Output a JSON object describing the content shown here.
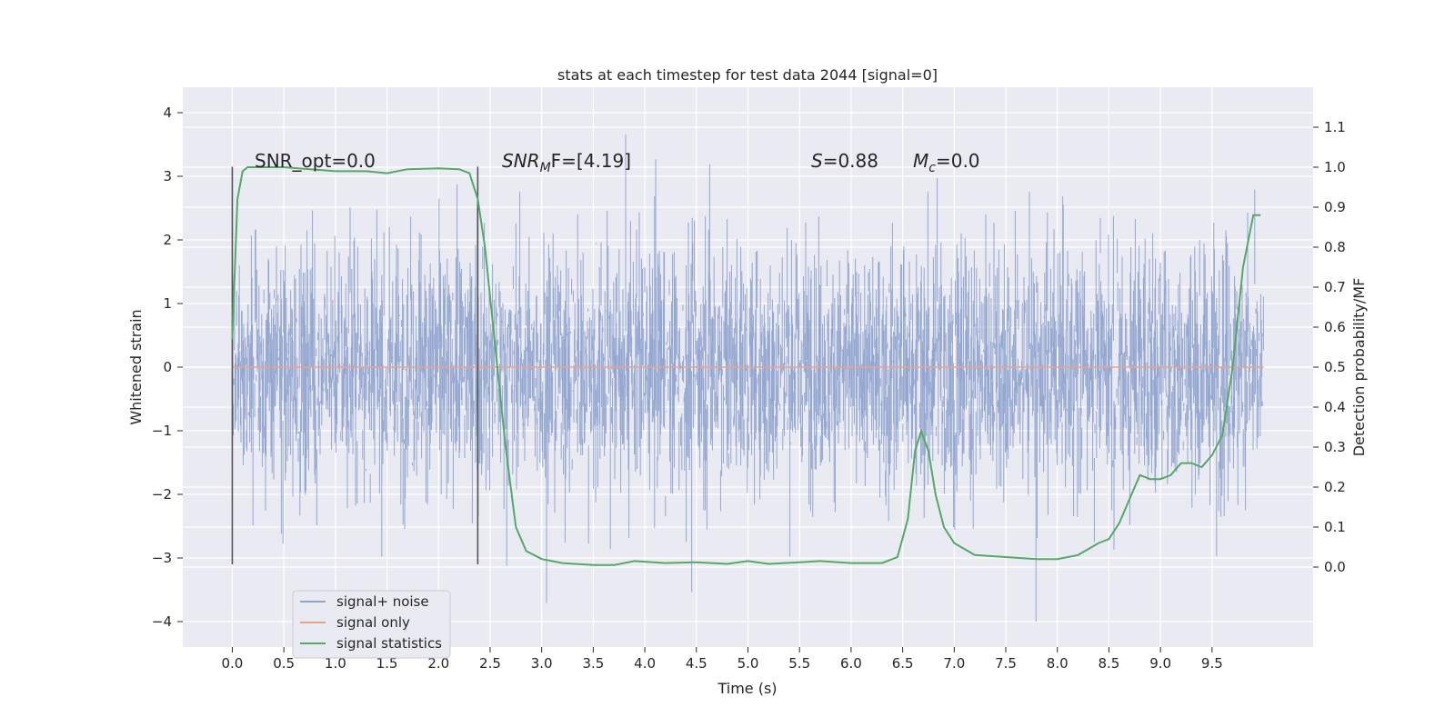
{
  "chart_data": {
    "type": "line",
    "title": "stats at each timestep for test data 2044 [signal=0]",
    "xlabel": "Time (s)",
    "ylabel_left": "Whitened strain",
    "ylabel_right": "Detection probability/MF",
    "xlim": [
      -0.48,
      10.48
    ],
    "ylim_left": [
      -4.4,
      4.4
    ],
    "ylim_right": [
      -0.2,
      1.2
    ],
    "x_ticks": [
      "0.0",
      "0.5",
      "1.0",
      "1.5",
      "2.0",
      "2.5",
      "3.0",
      "3.5",
      "4.0",
      "4.5",
      "5.0",
      "5.5",
      "6.0",
      "6.5",
      "7.0",
      "7.5",
      "8.0",
      "8.5",
      "9.0",
      "9.5"
    ],
    "y_left_ticks": [
      "4",
      "3",
      "2",
      "1",
      "0",
      "−1",
      "−2",
      "−3",
      "−4"
    ],
    "y_right_ticks": [
      "1.1",
      "1.0",
      "0.9",
      "0.8",
      "0.7",
      "0.6",
      "0.5",
      "0.4",
      "0.3",
      "0.2",
      "0.1",
      "0.0"
    ],
    "grid": true,
    "legend_position": "lower-left",
    "annotations": {
      "snr_opt": "SNR_opt=0.0",
      "snr_mf_label": "SNR",
      "snr_mf_sub": "M",
      "snr_mf_rest": "F=[4.19]",
      "s_label": "S",
      "s_value": "=0.88",
      "mc_label": "M",
      "mc_sub": "c",
      "mc_value": "=0.0"
    },
    "vertical_markers_x": [
      0.0,
      2.38
    ],
    "series": [
      {
        "name": "signal+ noise",
        "color": "#8fa3cf",
        "x_range": [
          0.0,
          10.0
        ],
        "approx_envelope": [
          -4.0,
          4.05
        ]
      },
      {
        "name": "signal only",
        "color": "#e8a38c",
        "x": [
          0.0,
          10.0
        ],
        "y": [
          0.0,
          0.0
        ]
      },
      {
        "name": "signal statistics",
        "color": "#55a868",
        "x": [
          0.0,
          0.05,
          0.1,
          0.15,
          0.25,
          0.5,
          1.0,
          1.3,
          1.5,
          1.7,
          2.0,
          2.2,
          2.3,
          2.38,
          2.45,
          2.55,
          2.65,
          2.75,
          2.85,
          3.0,
          3.2,
          3.5,
          3.7,
          3.9,
          4.2,
          4.5,
          4.8,
          5.0,
          5.2,
          5.5,
          5.7,
          6.0,
          6.3,
          6.45,
          6.55,
          6.62,
          6.68,
          6.75,
          6.82,
          6.9,
          7.0,
          7.2,
          7.5,
          7.8,
          8.0,
          8.2,
          8.4,
          8.5,
          8.6,
          8.7,
          8.8,
          8.9,
          9.0,
          9.1,
          9.2,
          9.3,
          9.4,
          9.5,
          9.6,
          9.7,
          9.8,
          9.9,
          9.97
        ],
        "y": [
          0.57,
          0.92,
          0.99,
          1.0,
          1.0,
          1.0,
          0.99,
          0.99,
          0.985,
          0.995,
          0.997,
          0.995,
          0.985,
          0.92,
          0.8,
          0.55,
          0.3,
          0.1,
          0.04,
          0.02,
          0.01,
          0.005,
          0.005,
          0.015,
          0.01,
          0.012,
          0.008,
          0.015,
          0.008,
          0.012,
          0.015,
          0.01,
          0.01,
          0.025,
          0.12,
          0.29,
          0.34,
          0.29,
          0.18,
          0.1,
          0.06,
          0.03,
          0.025,
          0.02,
          0.02,
          0.03,
          0.06,
          0.07,
          0.11,
          0.17,
          0.23,
          0.22,
          0.22,
          0.23,
          0.26,
          0.26,
          0.25,
          0.28,
          0.33,
          0.5,
          0.75,
          0.88,
          0.88
        ]
      }
    ]
  }
}
